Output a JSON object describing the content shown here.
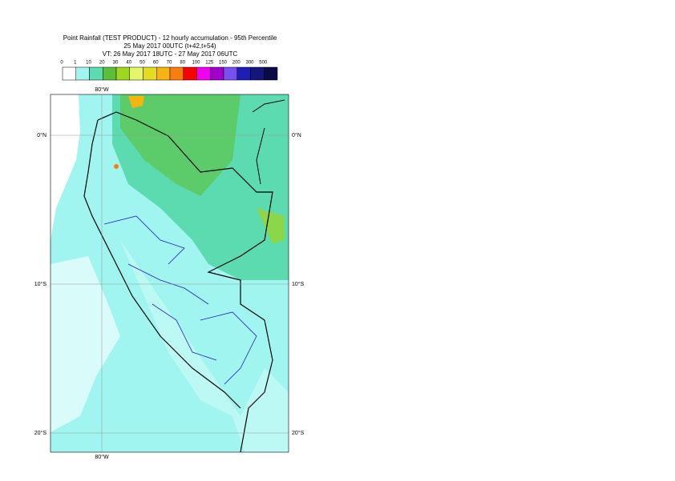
{
  "header": {
    "title": "Point Rainfall (TEST PRODUCT) - 12 hourly accumulation - 95th Percentile",
    "subtitle": "25 May 2017 00UTC (t+42,t+54)",
    "valid_time": "VT: 26 May 2017 18UTC - 27 May 2017 06UTC"
  },
  "legend": {
    "labels": [
      "0",
      "1",
      "10",
      "20",
      "30",
      "40",
      "50",
      "60",
      "70",
      "80",
      "100",
      "125",
      "150",
      "200",
      "300",
      "500"
    ],
    "colors": [
      "#ffffff",
      "#a0f5f0",
      "#5ddbb0",
      "#5cbf3c",
      "#9fd61e",
      "#e6f56a",
      "#e6dc1e",
      "#f5b40f",
      "#fa7d0f",
      "#fa0000",
      "#f000f0",
      "#a000c8",
      "#7850f0",
      "#1e1eb4",
      "#14147d",
      "#0a0a46"
    ]
  },
  "map": {
    "top_lon": "80°W",
    "bottom_lon": "80°W",
    "left_lats": [
      "0°N",
      "10°S",
      "20°S"
    ],
    "right_lats": [
      "0°N",
      "10°S",
      "20°S"
    ]
  }
}
